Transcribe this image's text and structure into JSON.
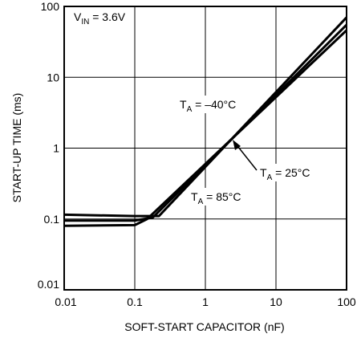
{
  "chart_data": {
    "type": "line",
    "xlabel": "SOFT-START CAPACITOR (nF)",
    "ylabel": "START-UP TIME (ms)",
    "x_scale": "log",
    "y_scale": "log",
    "xlim": [
      0.01,
      100
    ],
    "ylim": [
      0.01,
      100
    ],
    "grid": true,
    "x_ticks": [
      "0.01",
      "0.1",
      "1",
      "10",
      "100"
    ],
    "y_ticks": [
      "0.01",
      "0.1",
      "1",
      "10",
      "100"
    ],
    "condition": {
      "main": "V",
      "sub": "IN",
      "rest": " = 3.6V"
    },
    "series": [
      {
        "name": "TA = –40°C",
        "x": [
          0.01,
          0.1,
          0.22,
          100
        ],
        "y": [
          0.115,
          0.11,
          0.11,
          70
        ]
      },
      {
        "name": "TA = 25°C",
        "x": [
          0.01,
          0.1,
          0.18,
          100
        ],
        "y": [
          0.095,
          0.095,
          0.105,
          55
        ]
      },
      {
        "name": "TA = 85°C",
        "x": [
          0.01,
          0.1,
          0.15,
          100
        ],
        "y": [
          0.08,
          0.082,
          0.1,
          46
        ]
      }
    ],
    "annotations": [
      {
        "main": "T",
        "sub": "A",
        "rest": " = –40°C"
      },
      {
        "main": "T",
        "sub": "A",
        "rest": " = 25°C"
      },
      {
        "main": "T",
        "sub": "A",
        "rest": " = 85°C"
      }
    ]
  }
}
